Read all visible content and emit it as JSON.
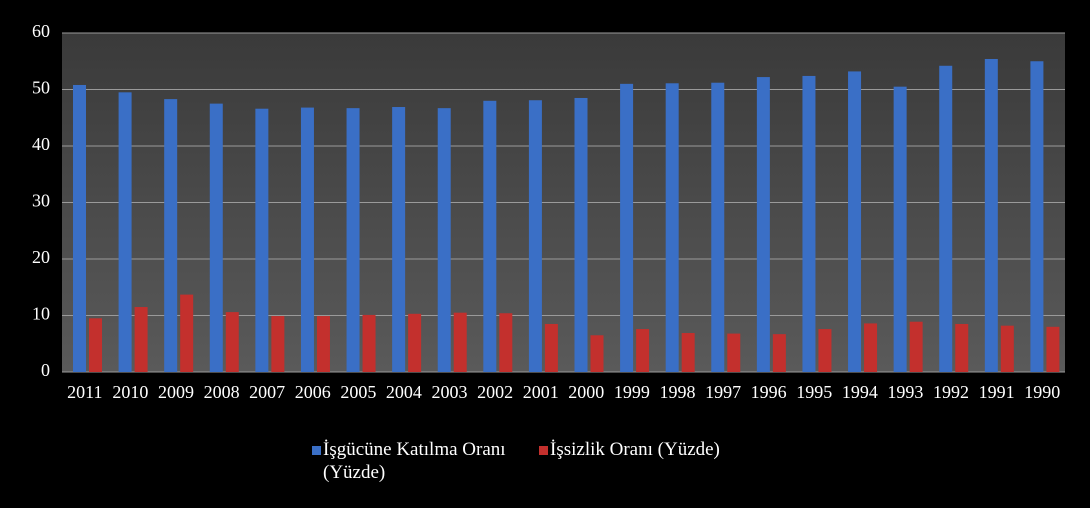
{
  "chart_data": {
    "type": "bar",
    "categories": [
      "2011",
      "2010",
      "2009",
      "2008",
      "2007",
      "2006",
      "2005",
      "2004",
      "2003",
      "2002",
      "2001",
      "2000",
      "1999",
      "1998",
      "1997",
      "1996",
      "1995",
      "1994",
      "1993",
      "1992",
      "1991",
      "1990"
    ],
    "series": [
      {
        "name": "İşgücüne Katılma Oranı (Yüzde)",
        "color": "#3a6fc6",
        "values": [
          50.8,
          49.5,
          48.3,
          47.5,
          46.6,
          46.8,
          46.7,
          46.9,
          46.7,
          48.0,
          48.1,
          48.5,
          51.0,
          51.1,
          51.2,
          52.2,
          52.4,
          53.2,
          50.5,
          54.2,
          55.4,
          55.0
        ]
      },
      {
        "name": "İşsizlik Oranı (Yüzde)",
        "color": "#c3302d",
        "values": [
          9.5,
          11.5,
          13.7,
          10.6,
          9.9,
          9.9,
          10.1,
          10.3,
          10.5,
          10.4,
          8.5,
          6.5,
          7.6,
          6.9,
          6.8,
          6.7,
          7.6,
          8.6,
          8.9,
          8.5,
          8.2,
          8.0
        ]
      }
    ],
    "ylim": [
      0,
      60
    ],
    "yticks": [
      0,
      10,
      20,
      30,
      40,
      50,
      60
    ],
    "grid": true,
    "legend": "bottom"
  }
}
